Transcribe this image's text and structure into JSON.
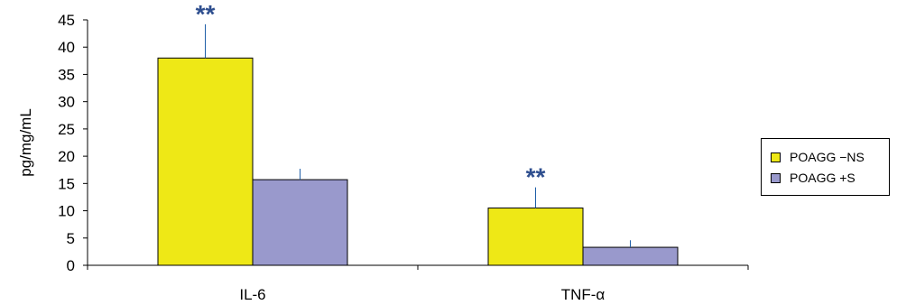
{
  "chart_data": {
    "type": "bar",
    "title": "",
    "xlabel": "",
    "ylabel": "pg/mg/mL",
    "categories": [
      "IL-6",
      "TNF-α"
    ],
    "series": [
      {
        "name": "POAGG −NS",
        "values": [
          38,
          10.5
        ],
        "errors": [
          6.2,
          3.8
        ],
        "color": "#eee816"
      },
      {
        "name": "POAGG +S",
        "values": [
          15.7,
          3.3
        ],
        "errors": [
          2.0,
          1.3
        ],
        "color": "#9999cc"
      }
    ],
    "annotations": [
      {
        "series": 0,
        "category": 0,
        "text": "**"
      },
      {
        "series": 0,
        "category": 1,
        "text": "**"
      }
    ],
    "ylim": [
      0,
      45
    ],
    "yticks": [
      "0",
      "5",
      "10",
      "15",
      "20",
      "25",
      "30",
      "35",
      "40",
      "45"
    ],
    "grid": false,
    "legend_position": "right",
    "colors": {
      "axis": "#000000",
      "annotation": "#2f4f8f",
      "error_bar": "#1f5fa8"
    }
  }
}
